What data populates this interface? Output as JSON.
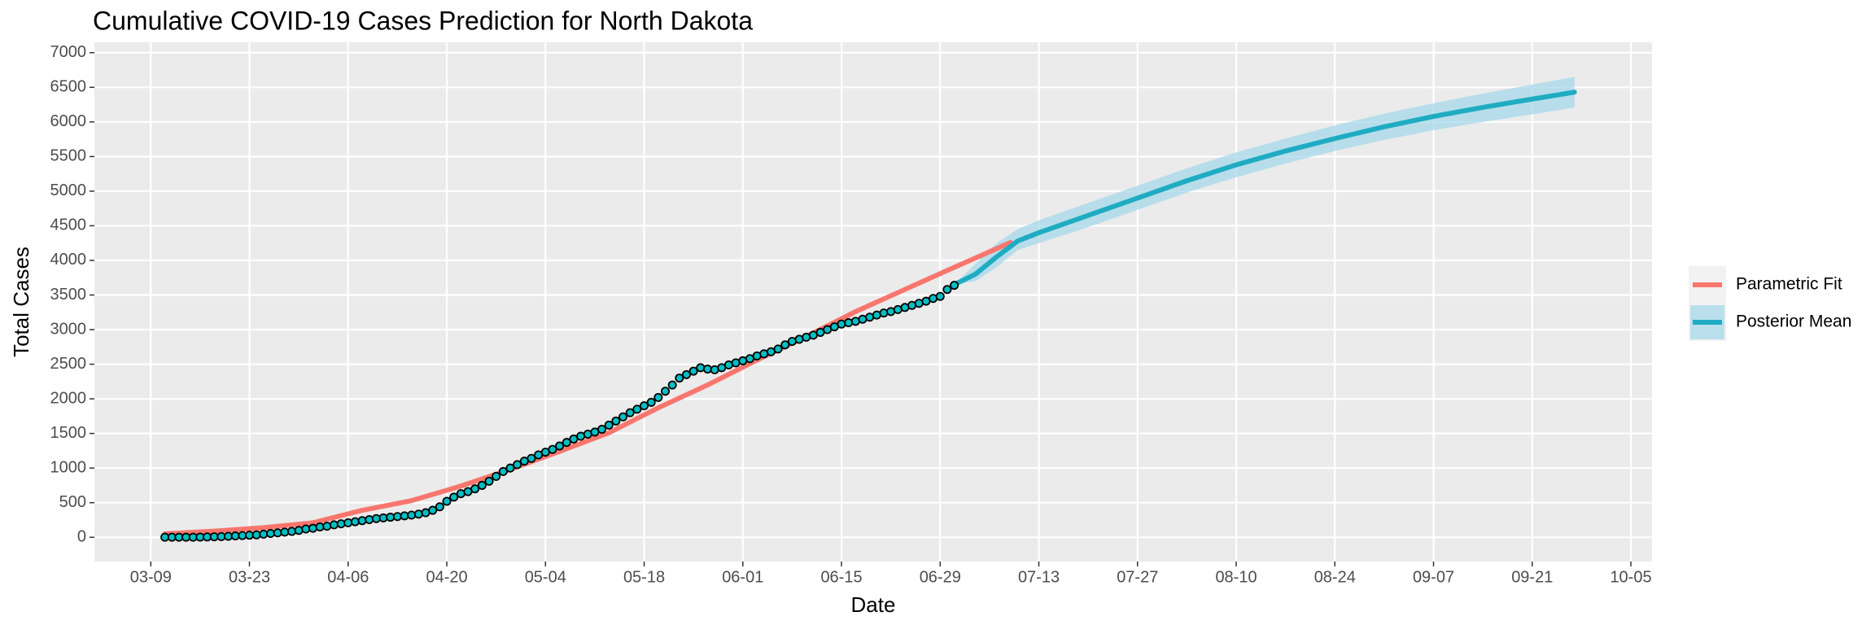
{
  "chart_data": {
    "type": "line",
    "title": "Cumulative COVID-19 Cases Prediction for North Dakota",
    "x_label": "Date",
    "y_label": "Total Cases",
    "xlim": [
      "03-01",
      "10-08"
    ],
    "ylim": [
      -350,
      7150
    ],
    "xticks": [
      "03-09",
      "03-23",
      "04-06",
      "04-20",
      "05-04",
      "05-18",
      "06-01",
      "06-15",
      "06-29",
      "07-13",
      "07-27",
      "08-10",
      "08-24",
      "09-07",
      "09-21",
      "10-05"
    ],
    "yticks": [
      0,
      500,
      1000,
      1500,
      2000,
      2500,
      3000,
      3500,
      4000,
      4500,
      5000,
      5500,
      6000,
      6500,
      7000
    ],
    "grid": true,
    "legend": "right",
    "points": {
      "color": "#00BFC4",
      "x": [
        "03-11",
        "03-12",
        "03-13",
        "03-14",
        "03-15",
        "03-16",
        "03-17",
        "03-18",
        "03-19",
        "03-20",
        "03-21",
        "03-22",
        "03-23",
        "03-24",
        "03-25",
        "03-26",
        "03-27",
        "03-28",
        "03-29",
        "03-30",
        "03-31",
        "04-01",
        "04-02",
        "04-03",
        "04-04",
        "04-05",
        "04-06",
        "04-07",
        "04-08",
        "04-09",
        "04-10",
        "04-11",
        "04-12",
        "04-13",
        "04-14",
        "04-15",
        "04-16",
        "04-17",
        "04-18",
        "04-19",
        "04-20",
        "04-21",
        "04-22",
        "04-23",
        "04-24",
        "04-25",
        "04-26",
        "04-27",
        "04-28",
        "04-29",
        "04-30",
        "05-01",
        "05-02",
        "05-03",
        "05-04",
        "05-05",
        "05-06",
        "05-07",
        "05-08",
        "05-09",
        "05-10",
        "05-11",
        "05-12",
        "05-13",
        "05-14",
        "05-15",
        "05-16",
        "05-17",
        "05-18",
        "05-19",
        "05-20",
        "05-21",
        "05-22",
        "05-23",
        "05-24",
        "05-25",
        "05-26",
        "05-27",
        "05-28",
        "05-29",
        "05-30",
        "05-31",
        "06-01",
        "06-02",
        "06-03",
        "06-04",
        "06-05",
        "06-06",
        "06-07",
        "06-08",
        "06-09",
        "06-10",
        "06-11",
        "06-12",
        "06-13",
        "06-14",
        "06-15",
        "06-16",
        "06-17",
        "06-18",
        "06-19",
        "06-20",
        "06-21",
        "06-22",
        "06-23",
        "06-24",
        "06-25",
        "06-26",
        "06-27",
        "06-28",
        "06-29",
        "06-30",
        "07-01"
      ],
      "values": [
        1,
        1,
        1,
        1,
        1,
        3,
        5,
        7,
        10,
        15,
        20,
        25,
        30,
        35,
        45,
        55,
        65,
        75,
        85,
        100,
        120,
        130,
        150,
        160,
        180,
        195,
        210,
        225,
        240,
        255,
        270,
        280,
        290,
        300,
        310,
        320,
        335,
        355,
        390,
        440,
        520,
        580,
        630,
        660,
        700,
        750,
        810,
        880,
        950,
        1000,
        1050,
        1100,
        1140,
        1190,
        1230,
        1270,
        1320,
        1370,
        1420,
        1460,
        1490,
        1520,
        1560,
        1620,
        1680,
        1740,
        1800,
        1850,
        1900,
        1950,
        2020,
        2110,
        2200,
        2300,
        2350,
        2400,
        2450,
        2430,
        2420,
        2450,
        2490,
        2520,
        2550,
        2580,
        2620,
        2650,
        2680,
        2720,
        2780,
        2830,
        2860,
        2890,
        2920,
        2960,
        3000,
        3040,
        3080,
        3100,
        3120,
        3150,
        3180,
        3210,
        3240,
        3260,
        3290,
        3320,
        3350,
        3380,
        3410,
        3450,
        3480,
        3580,
        3640
      ]
    },
    "series": [
      {
        "name": "Parametric Fit",
        "color": "#F8766D",
        "x": [
          "03-11",
          "03-18",
          "03-25",
          "04-01",
          "04-08",
          "04-15",
          "04-22",
          "04-29",
          "05-06",
          "05-13",
          "05-20",
          "05-27",
          "06-03",
          "06-10",
          "06-17",
          "06-24",
          "07-01",
          "07-09"
        ],
        "values": [
          50,
          90,
          140,
          210,
          390,
          530,
          740,
          980,
          1240,
          1510,
          1870,
          2200,
          2560,
          2900,
          3260,
          3580,
          3900,
          4260
        ]
      },
      {
        "name": "Posterior Mean",
        "color": "#1FACC2",
        "band_color": "#A6D8EA",
        "x": [
          "07-01",
          "07-04",
          "07-07",
          "07-10",
          "07-13",
          "07-20",
          "07-27",
          "08-03",
          "08-10",
          "08-17",
          "08-24",
          "08-31",
          "09-07",
          "09-14",
          "09-21",
          "09-27"
        ],
        "values": [
          3650,
          3800,
          4050,
          4280,
          4400,
          4650,
          4900,
          5150,
          5380,
          5580,
          5760,
          5930,
          6080,
          6210,
          6330,
          6430
        ],
        "lower": [
          3650,
          3700,
          3900,
          4150,
          4250,
          4480,
          4730,
          4980,
          5200,
          5400,
          5580,
          5740,
          5880,
          6000,
          6110,
          6210
        ],
        "upper": [
          3650,
          3950,
          4250,
          4450,
          4580,
          4830,
          5080,
          5330,
          5560,
          5760,
          5950,
          6120,
          6270,
          6410,
          6540,
          6650
        ]
      }
    ]
  }
}
